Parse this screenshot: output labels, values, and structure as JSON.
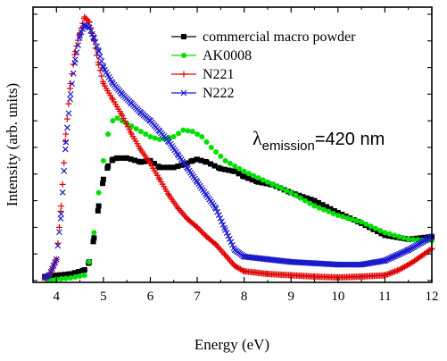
{
  "chart_data": {
    "type": "scatter",
    "title": "",
    "xlabel": "Energy (eV)",
    "ylabel": "Intensity (arb. units)",
    "xlim": [
      3.5,
      12
    ],
    "ylim": [
      0,
      1.02
    ],
    "x_ticks": [
      4,
      5,
      6,
      7,
      8,
      9,
      10,
      11,
      12
    ],
    "y_tick_labels_shown": false,
    "grid": false,
    "legend_position": "top-right",
    "annotation": {
      "symbol": "λ",
      "subscript": "emission",
      "text": "=420 nm"
    },
    "series": [
      {
        "name": "commercial macro powder",
        "color": "#000000",
        "marker": "square",
        "x": [
          3.75,
          4.0,
          4.3,
          4.6,
          4.7,
          4.8,
          4.9,
          5.0,
          5.1,
          5.2,
          5.3,
          5.5,
          5.8,
          6.0,
          6.2,
          6.5,
          6.7,
          6.9,
          7.0,
          7.2,
          7.5,
          7.8,
          8.0,
          8.3,
          8.6,
          9.0,
          9.5,
          10.0,
          10.5,
          11.0,
          11.5,
          12.0
        ],
        "y": [
          0.015,
          0.02,
          0.025,
          0.04,
          0.07,
          0.16,
          0.28,
          0.38,
          0.43,
          0.455,
          0.46,
          0.46,
          0.445,
          0.45,
          0.425,
          0.425,
          0.435,
          0.45,
          0.455,
          0.445,
          0.42,
          0.41,
          0.39,
          0.37,
          0.36,
          0.33,
          0.3,
          0.255,
          0.215,
          0.17,
          0.155,
          0.165
        ]
      },
      {
        "name": "AK0008",
        "color": "#00e000",
        "marker": "circle",
        "x": [
          3.8,
          4.0,
          4.3,
          4.6,
          4.7,
          4.8,
          4.9,
          5.0,
          5.1,
          5.2,
          5.3,
          5.5,
          5.8,
          6.0,
          6.2,
          6.5,
          6.7,
          6.9,
          7.1,
          7.3,
          7.6,
          8.0,
          8.5,
          9.0,
          9.5,
          10.0,
          10.5,
          11.0,
          11.5,
          12.0
        ],
        "y": [
          0.0,
          0.005,
          0.01,
          0.02,
          0.07,
          0.18,
          0.33,
          0.45,
          0.55,
          0.6,
          0.61,
          0.59,
          0.56,
          0.54,
          0.53,
          0.54,
          0.565,
          0.56,
          0.54,
          0.5,
          0.45,
          0.41,
          0.37,
          0.33,
          0.28,
          0.245,
          0.22,
          0.18,
          0.155,
          0.15
        ]
      },
      {
        "name": "N221",
        "color": "#e00000",
        "marker": "plus",
        "x": [
          3.75,
          3.85,
          4.0,
          4.1,
          4.2,
          4.3,
          4.4,
          4.5,
          4.6,
          4.7,
          4.8,
          4.9,
          5.0,
          5.2,
          5.4,
          5.6,
          5.8,
          6.0,
          6.2,
          6.4,
          6.6,
          6.8,
          7.0,
          7.2,
          7.4,
          7.6,
          7.8,
          8.0,
          8.5,
          9.0,
          9.5,
          10.0,
          10.5,
          11.0,
          11.3,
          11.6,
          12.0
        ],
        "y": [
          0.01,
          0.02,
          0.08,
          0.28,
          0.55,
          0.74,
          0.86,
          0.93,
          0.99,
          0.97,
          0.9,
          0.81,
          0.74,
          0.68,
          0.62,
          0.55,
          0.49,
          0.44,
          0.38,
          0.32,
          0.27,
          0.23,
          0.2,
          0.165,
          0.135,
          0.095,
          0.055,
          0.035,
          0.025,
          0.02,
          0.015,
          0.012,
          0.015,
          0.02,
          0.04,
          0.07,
          0.12
        ]
      },
      {
        "name": "N222",
        "color": "#1a1acd",
        "marker": "x",
        "x": [
          3.75,
          3.85,
          4.0,
          4.1,
          4.2,
          4.3,
          4.4,
          4.5,
          4.6,
          4.7,
          4.8,
          4.9,
          5.0,
          5.2,
          5.4,
          5.6,
          5.8,
          6.0,
          6.2,
          6.4,
          6.6,
          6.8,
          7.0,
          7.2,
          7.4,
          7.6,
          7.8,
          8.0,
          8.5,
          9.0,
          9.5,
          10.0,
          10.5,
          11.0,
          11.5,
          12.0
        ],
        "y": [
          0.01,
          0.02,
          0.08,
          0.25,
          0.52,
          0.7,
          0.83,
          0.92,
          0.96,
          0.95,
          0.91,
          0.86,
          0.8,
          0.74,
          0.7,
          0.665,
          0.63,
          0.6,
          0.56,
          0.52,
          0.47,
          0.42,
          0.37,
          0.32,
          0.27,
          0.19,
          0.115,
          0.09,
          0.08,
          0.07,
          0.065,
          0.06,
          0.06,
          0.075,
          0.115,
          0.165
        ]
      }
    ]
  }
}
